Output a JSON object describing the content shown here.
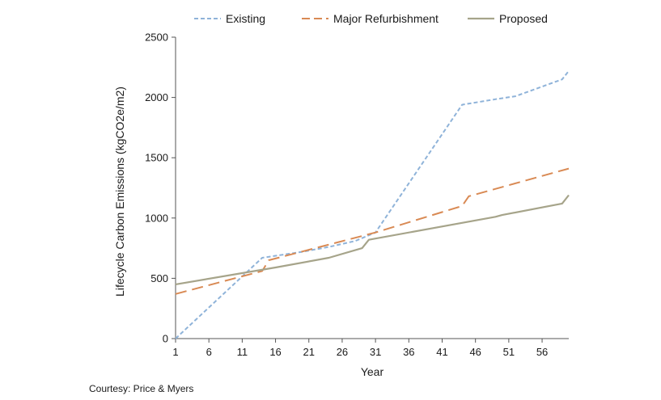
{
  "chart_data": {
    "type": "line",
    "xlabel": "Year",
    "ylabel": "Lifecycle Carbon Emissions (kgCO2e/m2)",
    "xlim": [
      1,
      60
    ],
    "ylim": [
      0,
      2500
    ],
    "x_ticks": [
      1,
      6,
      11,
      16,
      21,
      26,
      31,
      36,
      41,
      46,
      51,
      56
    ],
    "y_ticks": [
      0,
      500,
      1000,
      1500,
      2000,
      2500
    ],
    "grid": false,
    "legend_position": "top",
    "series": [
      {
        "name": "Existing",
        "color": "#8fb3d9",
        "style": "short-dash",
        "points": [
          [
            1,
            0
          ],
          [
            14,
            670
          ],
          [
            20,
            720
          ],
          [
            24,
            760
          ],
          [
            28,
            810
          ],
          [
            31,
            880
          ],
          [
            44,
            1940
          ],
          [
            49,
            1985
          ],
          [
            52,
            2010
          ],
          [
            59,
            2150
          ],
          [
            60,
            2220
          ]
        ]
      },
      {
        "name": "Major Refurbishment",
        "color": "#d98a54",
        "style": "long-dash",
        "points": [
          [
            1,
            370
          ],
          [
            14,
            560
          ],
          [
            15,
            650
          ],
          [
            31,
            880
          ],
          [
            44,
            1100
          ],
          [
            45,
            1180
          ],
          [
            60,
            1410
          ]
        ]
      },
      {
        "name": "Proposed",
        "color": "#a6a48a",
        "style": "solid",
        "points": [
          [
            1,
            450
          ],
          [
            16,
            590
          ],
          [
            24,
            670
          ],
          [
            29,
            750
          ],
          [
            30,
            820
          ],
          [
            49,
            1010
          ],
          [
            50,
            1025
          ],
          [
            59,
            1120
          ],
          [
            60,
            1190
          ]
        ]
      }
    ]
  },
  "credit": "Courtesy: Price & Myers"
}
